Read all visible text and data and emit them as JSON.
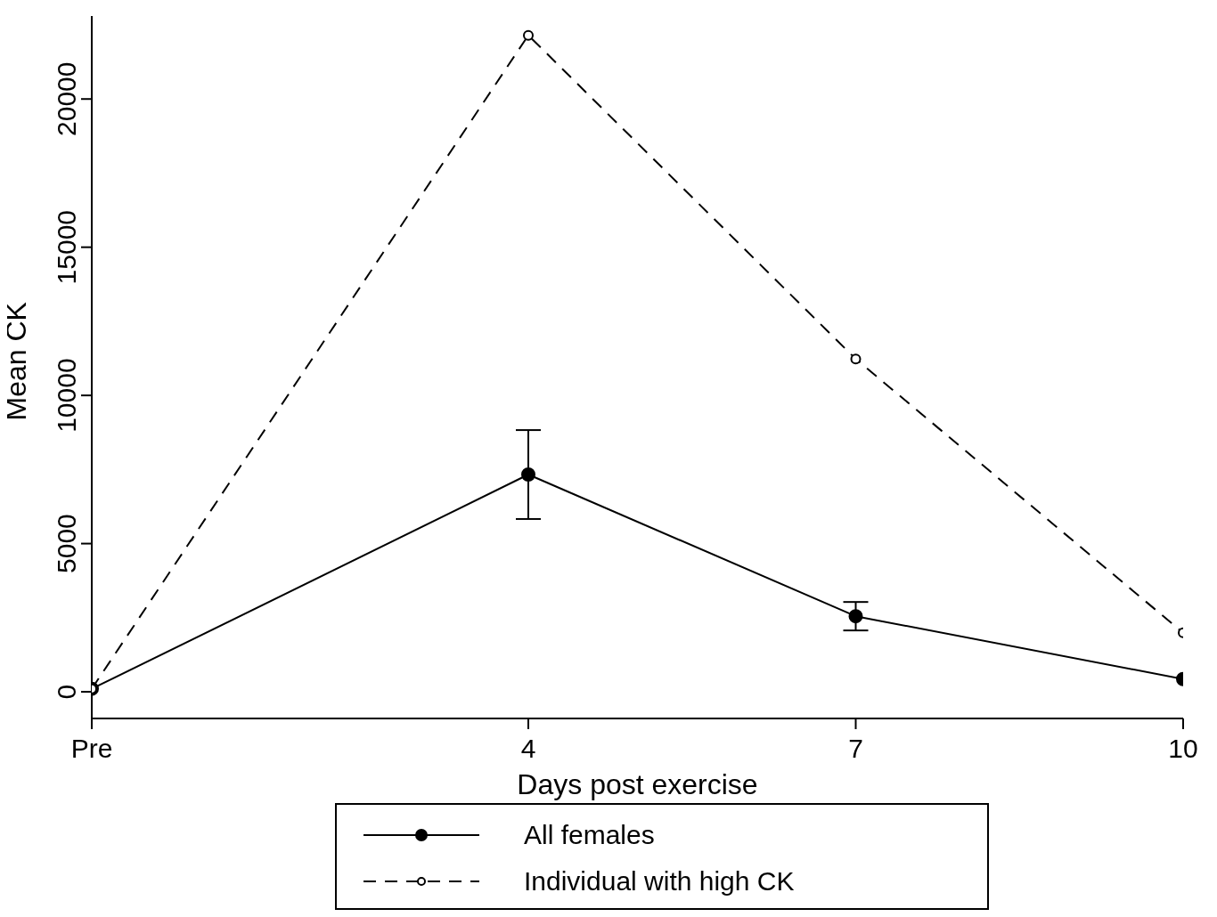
{
  "chart_data": {
    "type": "line",
    "xlabel": "Days post exercise",
    "ylabel": "Mean CK",
    "x": [
      0,
      4,
      7,
      10
    ],
    "xlim": [
      0,
      10
    ],
    "xticks": [
      {
        "value": 0,
        "label": "Pre"
      },
      4,
      7,
      10
    ],
    "ylim": [
      -900,
      22800
    ],
    "yticks": [
      0,
      5000,
      10000,
      15000,
      20000
    ],
    "legend": "bottom",
    "marker": "circle",
    "series": [
      {
        "name": "All females",
        "color": "#000000",
        "values": [
          100,
          7330,
          2550,
          430
        ],
        "errors": [
          null,
          1500,
          480,
          null
        ],
        "line_style": "solid"
      },
      {
        "name": "Individual with high CK",
        "color": "#000000",
        "values": [
          100,
          22150,
          11230,
          1990
        ],
        "line_style": "dashed"
      }
    ]
  }
}
